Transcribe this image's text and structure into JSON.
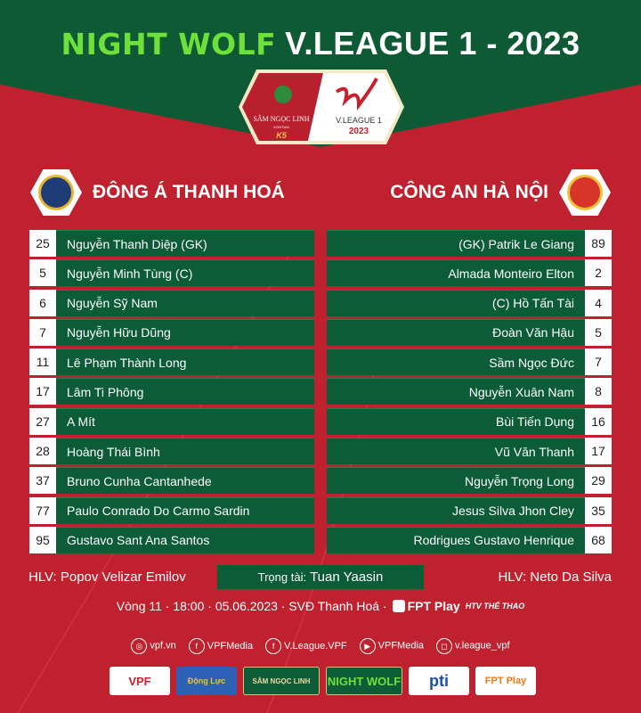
{
  "header": {
    "brand": "NIGHT WOLF",
    "title": "V.LEAGUE 1 - 2023"
  },
  "emblem": {
    "sponsor": "SÂM NGỌC LINH",
    "sub": "KONTUM",
    "k5": "K5",
    "league": "V.LEAGUE 1",
    "year": "2023"
  },
  "home": {
    "name": "ĐÔNG Á THANH HOÁ",
    "players": [
      {
        "num": "25",
        "name": "Nguyễn Thanh Diệp (GK)"
      },
      {
        "num": "5",
        "name": "Nguyễn Minh Tùng (C)"
      },
      {
        "num": "6",
        "name": "Nguyễn Sỹ Nam"
      },
      {
        "num": "7",
        "name": "Nguyễn Hữu Dũng"
      },
      {
        "num": "11",
        "name": "Lê Phạm Thành Long"
      },
      {
        "num": "17",
        "name": "Lâm Ti Phông"
      },
      {
        "num": "27",
        "name": "A Mít"
      },
      {
        "num": "28",
        "name": "Hoàng Thái Bình"
      },
      {
        "num": "37",
        "name": "Bruno Cunha Cantanhede"
      },
      {
        "num": "77",
        "name": "Paulo Conrado Do Carmo Sardin"
      },
      {
        "num": "95",
        "name": "Gustavo Sant Ana Santos"
      }
    ],
    "coach": "HLV: Popov Velizar Emilov"
  },
  "away": {
    "name": "CÔNG AN HÀ NỘI",
    "players": [
      {
        "num": "89",
        "name": "(GK) Patrik Le Giang"
      },
      {
        "num": "2",
        "name": "Almada Monteiro Elton"
      },
      {
        "num": "4",
        "name": "(C) Hồ Tấn Tài"
      },
      {
        "num": "5",
        "name": "Đoàn Văn Hậu"
      },
      {
        "num": "7",
        "name": "Sầm Ngọc Đức"
      },
      {
        "num": "8",
        "name": "Nguyễn Xuân Nam"
      },
      {
        "num": "16",
        "name": "Bùi Tiến Dụng"
      },
      {
        "num": "17",
        "name": "Vũ Văn Thanh"
      },
      {
        "num": "29",
        "name": "Nguyễn Trọng Long"
      },
      {
        "num": "35",
        "name": "Jesus Silva Jhon Cley"
      },
      {
        "num": "68",
        "name": "Rodrigues Gustavo Henrique"
      }
    ],
    "coach": "HLV: Neto Da Silva"
  },
  "referee": {
    "label": "Trọng tài:",
    "name": "Tuan Yaasin"
  },
  "match": {
    "info": "Vòng 11 · 18:00 · 05.06.2023 · SVĐ Thanh Hoá ·",
    "fpt": "FPT Play",
    "htv": "HTV THỂ THAO"
  },
  "social": [
    {
      "icon": "globe-icon",
      "text": "vpf.vn"
    },
    {
      "icon": "facebook-icon",
      "text": "VPFMedia"
    },
    {
      "icon": "facebook-icon",
      "text": "V.League.VPF"
    },
    {
      "icon": "youtube-icon",
      "text": "VPFMedia"
    },
    {
      "icon": "instagram-icon",
      "text": "v.league_vpf"
    }
  ],
  "sponsors": [
    "VPF",
    "Động Lực",
    "SÂM NGỌC LINH",
    "NIGHT WOLF",
    "pti",
    "FPT Play"
  ],
  "colors": {
    "red": "#c0212f",
    "green": "#0b5c37",
    "accent": "#6ee03a"
  }
}
